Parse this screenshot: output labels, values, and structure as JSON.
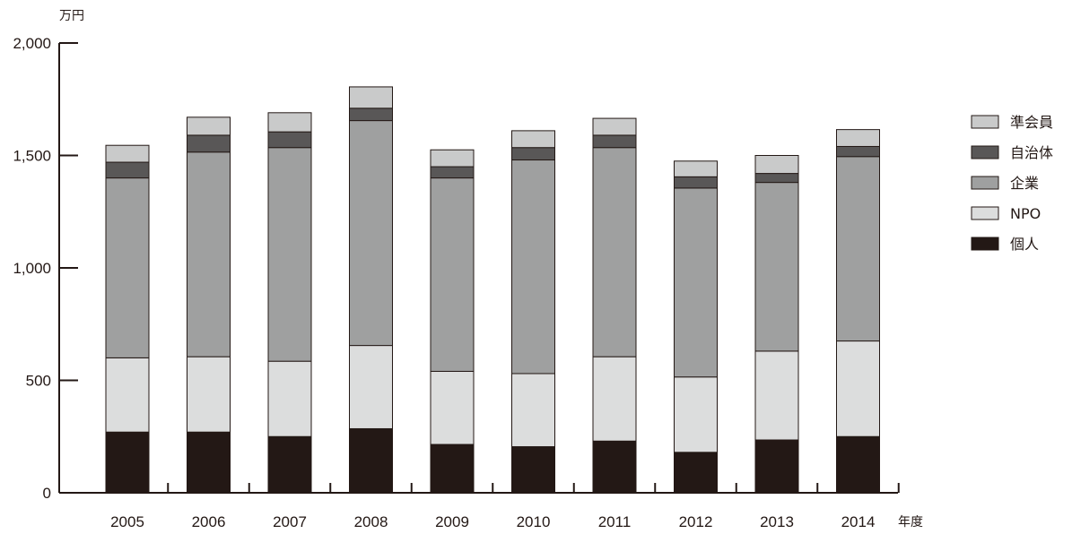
{
  "chart_data": {
    "type": "bar",
    "stacked": true,
    "title": "",
    "ylabel": "万円",
    "xlabel": "年度",
    "ylim": [
      0,
      2000
    ],
    "yticks": [
      0,
      500,
      1000,
      1500,
      2000
    ],
    "ytick_labels": [
      "0",
      "500",
      "1,000",
      "1,500",
      "2,000"
    ],
    "categories": [
      "2005",
      "2006",
      "2007",
      "2008",
      "2009",
      "2010",
      "2011",
      "2012",
      "2013",
      "2014"
    ],
    "grid": false,
    "legend_position": "right",
    "series": [
      {
        "name": "個人",
        "color": "#231815",
        "values": [
          270,
          270,
          250,
          285,
          215,
          205,
          230,
          180,
          235,
          250
        ]
      },
      {
        "name": "NPO",
        "color": "#dcdddd",
        "values": [
          330,
          335,
          335,
          370,
          325,
          325,
          375,
          335,
          395,
          425
        ]
      },
      {
        "name": "企業",
        "color": "#9fa0a0",
        "values": [
          800,
          910,
          950,
          1000,
          860,
          950,
          930,
          840,
          750,
          820
        ]
      },
      {
        "name": "自治体",
        "color": "#595757",
        "values": [
          70,
          75,
          70,
          55,
          50,
          55,
          55,
          50,
          40,
          45
        ]
      },
      {
        "name": "準会員",
        "color": "#c9caca",
        "values": [
          75,
          80,
          85,
          95,
          75,
          75,
          75,
          70,
          80,
          75
        ]
      }
    ],
    "legend_order": [
      "準会員",
      "自治体",
      "企業",
      "NPO",
      "個人"
    ]
  }
}
